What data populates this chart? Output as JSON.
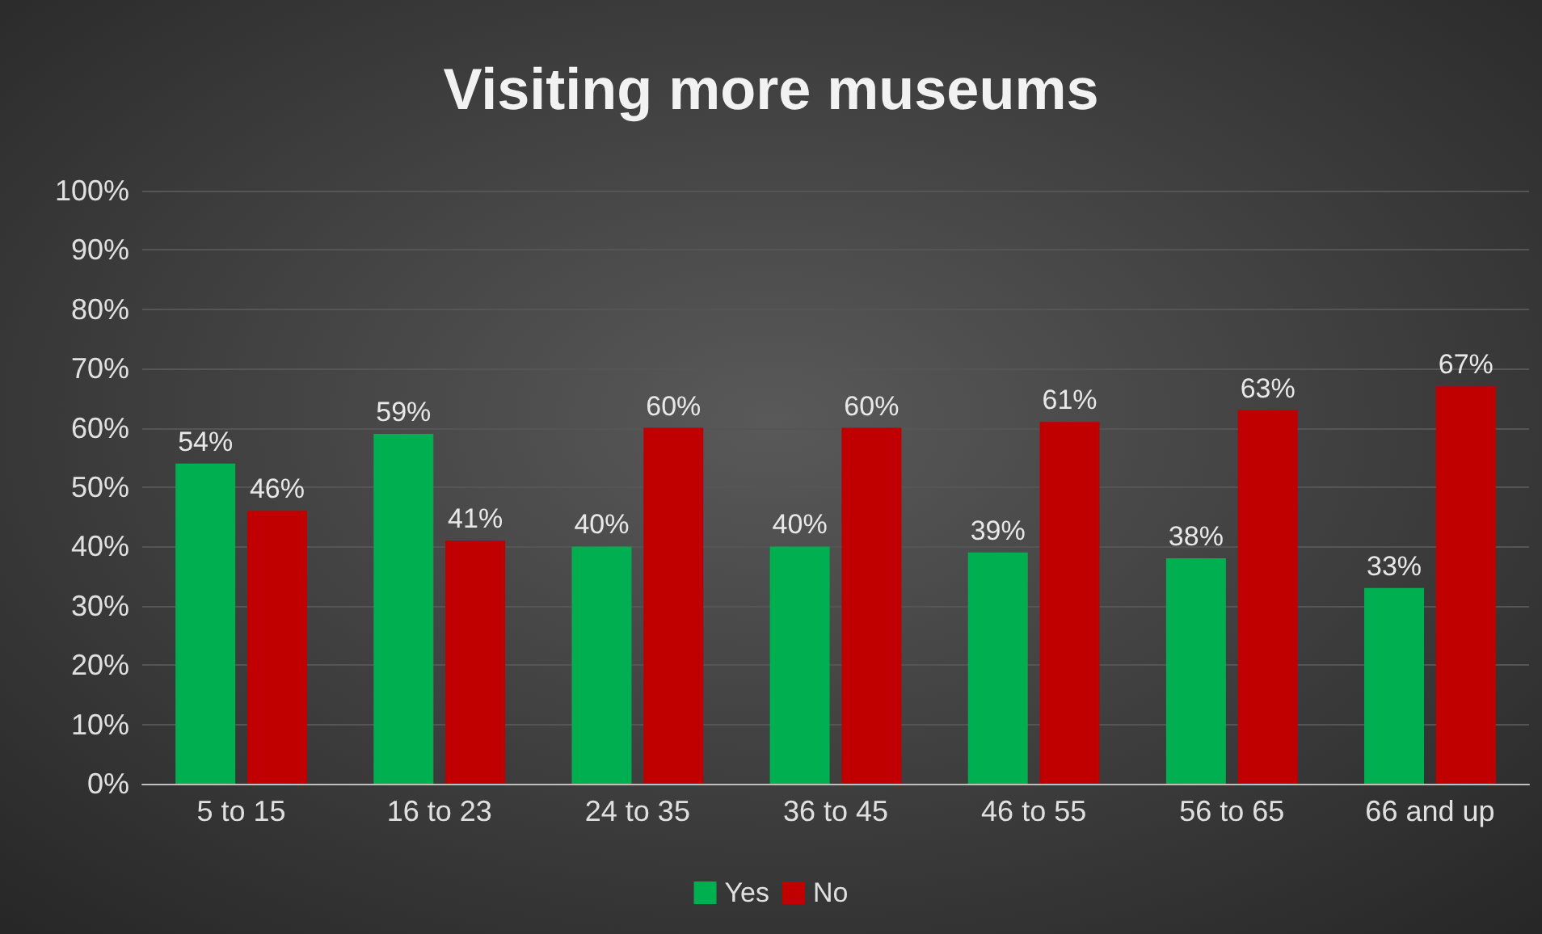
{
  "chart_data": {
    "type": "bar",
    "title": "Visiting more museums",
    "categories": [
      "5 to 15",
      "16 to 23",
      "24 to 35",
      "36 to 45",
      "46 to 55",
      "56 to 65",
      "66 and up"
    ],
    "series": [
      {
        "name": "Yes",
        "color": "#00b050",
        "values": [
          54,
          59,
          40,
          40,
          39,
          38,
          33
        ],
        "value_labels": [
          "54%",
          "59%",
          "40%",
          "40%",
          "39%",
          "38%",
          "33%"
        ]
      },
      {
        "name": "No",
        "color": "#c00000",
        "values": [
          46,
          41,
          60,
          60,
          61,
          63,
          67
        ],
        "value_labels": [
          "46%",
          "41%",
          "60%",
          "60%",
          "61%",
          "63%",
          "67%"
        ]
      }
    ],
    "ylim": [
      0,
      100
    ],
    "yticks": [
      {
        "value": 0,
        "label": "0%"
      },
      {
        "value": 10,
        "label": "10%"
      },
      {
        "value": 20,
        "label": "20%"
      },
      {
        "value": 30,
        "label": "30%"
      },
      {
        "value": 40,
        "label": "40%"
      },
      {
        "value": 50,
        "label": "50%"
      },
      {
        "value": 60,
        "label": "60%"
      },
      {
        "value": 70,
        "label": "70%"
      },
      {
        "value": 80,
        "label": "80%"
      },
      {
        "value": 90,
        "label": "90%"
      },
      {
        "value": 100,
        "label": "100%"
      }
    ],
    "grid": "y",
    "legend": "bottom"
  }
}
